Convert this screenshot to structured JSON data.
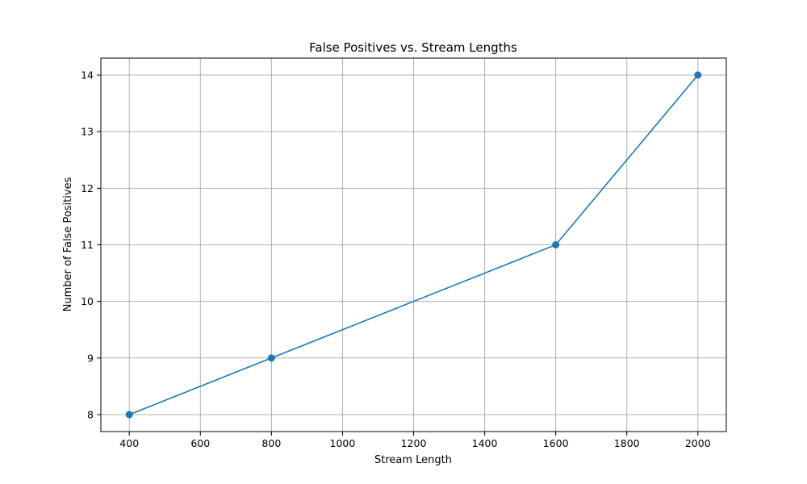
{
  "chart_data": {
    "type": "line",
    "title": "False Positives vs. Stream Lengths",
    "xlabel": "Stream Length",
    "ylabel": "Number of False Positives",
    "x": [
      400,
      800,
      1600,
      2000
    ],
    "series": [
      {
        "values": [
          8,
          9,
          11,
          14
        ],
        "color": "#1f77b4",
        "marker": "circle"
      }
    ],
    "xlim": [
      320,
      2080
    ],
    "ylim": [
      7.7,
      14.3
    ],
    "xticks": [
      400,
      600,
      800,
      1000,
      1200,
      1400,
      1600,
      1800,
      2000
    ],
    "yticks": [
      8,
      9,
      10,
      11,
      12,
      13,
      14
    ],
    "grid": true
  }
}
